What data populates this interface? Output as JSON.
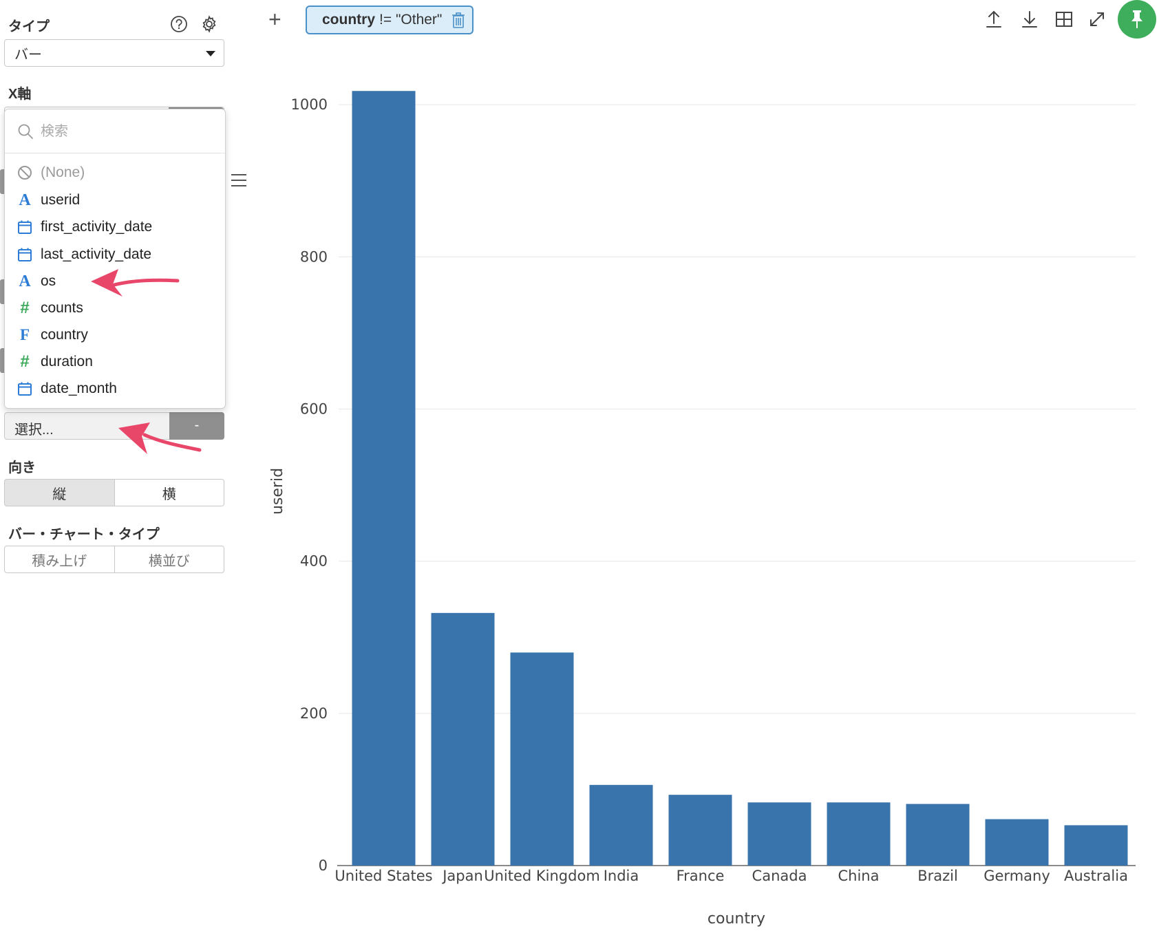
{
  "sidebar": {
    "type_label": "タイプ",
    "chart_type_value": "バー",
    "x_axis_label": "X軸",
    "dropdown": {
      "search_placeholder": "検索",
      "options": [
        {
          "label": "(None)",
          "icon": "none-icon"
        },
        {
          "label": "userid",
          "icon": "text-type-icon"
        },
        {
          "label": "first_activity_date",
          "icon": "calendar-icon"
        },
        {
          "label": "last_activity_date",
          "icon": "calendar-icon"
        },
        {
          "label": "os",
          "icon": "text-type-icon"
        },
        {
          "label": "counts",
          "icon": "numeric-type-icon"
        },
        {
          "label": "country",
          "icon": "factor-type-icon"
        },
        {
          "label": "duration",
          "icon": "numeric-type-icon"
        },
        {
          "label": "date_month",
          "icon": "calendar-icon"
        }
      ]
    },
    "select_placeholder": "選択...",
    "remove_label": "-",
    "orientation_label": "向き",
    "orientation_options": [
      "縦",
      "横"
    ],
    "bar_chart_type_label": "バー・チャート・タイプ",
    "bar_chart_type_options": [
      "積み上げ",
      "横並び"
    ]
  },
  "topbar": {
    "add_label": "+",
    "filter": {
      "field": "country",
      "expression": "!= \"Other\""
    }
  },
  "colors": {
    "bar": "#3a74ad",
    "accent_green": "#3fae5c",
    "filter_bg": "#dcedfa",
    "filter_border": "#4a90c8",
    "arrow": "#e8476a"
  },
  "chart_data": {
    "type": "bar",
    "xlabel": "country",
    "ylabel": "userid",
    "ylim": [
      0,
      1020
    ],
    "yticks": [
      0,
      200,
      400,
      600,
      800,
      1000
    ],
    "categories": [
      "United States",
      "Japan",
      "United Kingdom",
      "India",
      "France",
      "Canada",
      "China",
      "Brazil",
      "Germany",
      "Australia"
    ],
    "values": [
      1018,
      332,
      280,
      106,
      93,
      83,
      83,
      81,
      61,
      53
    ],
    "grid": true
  }
}
